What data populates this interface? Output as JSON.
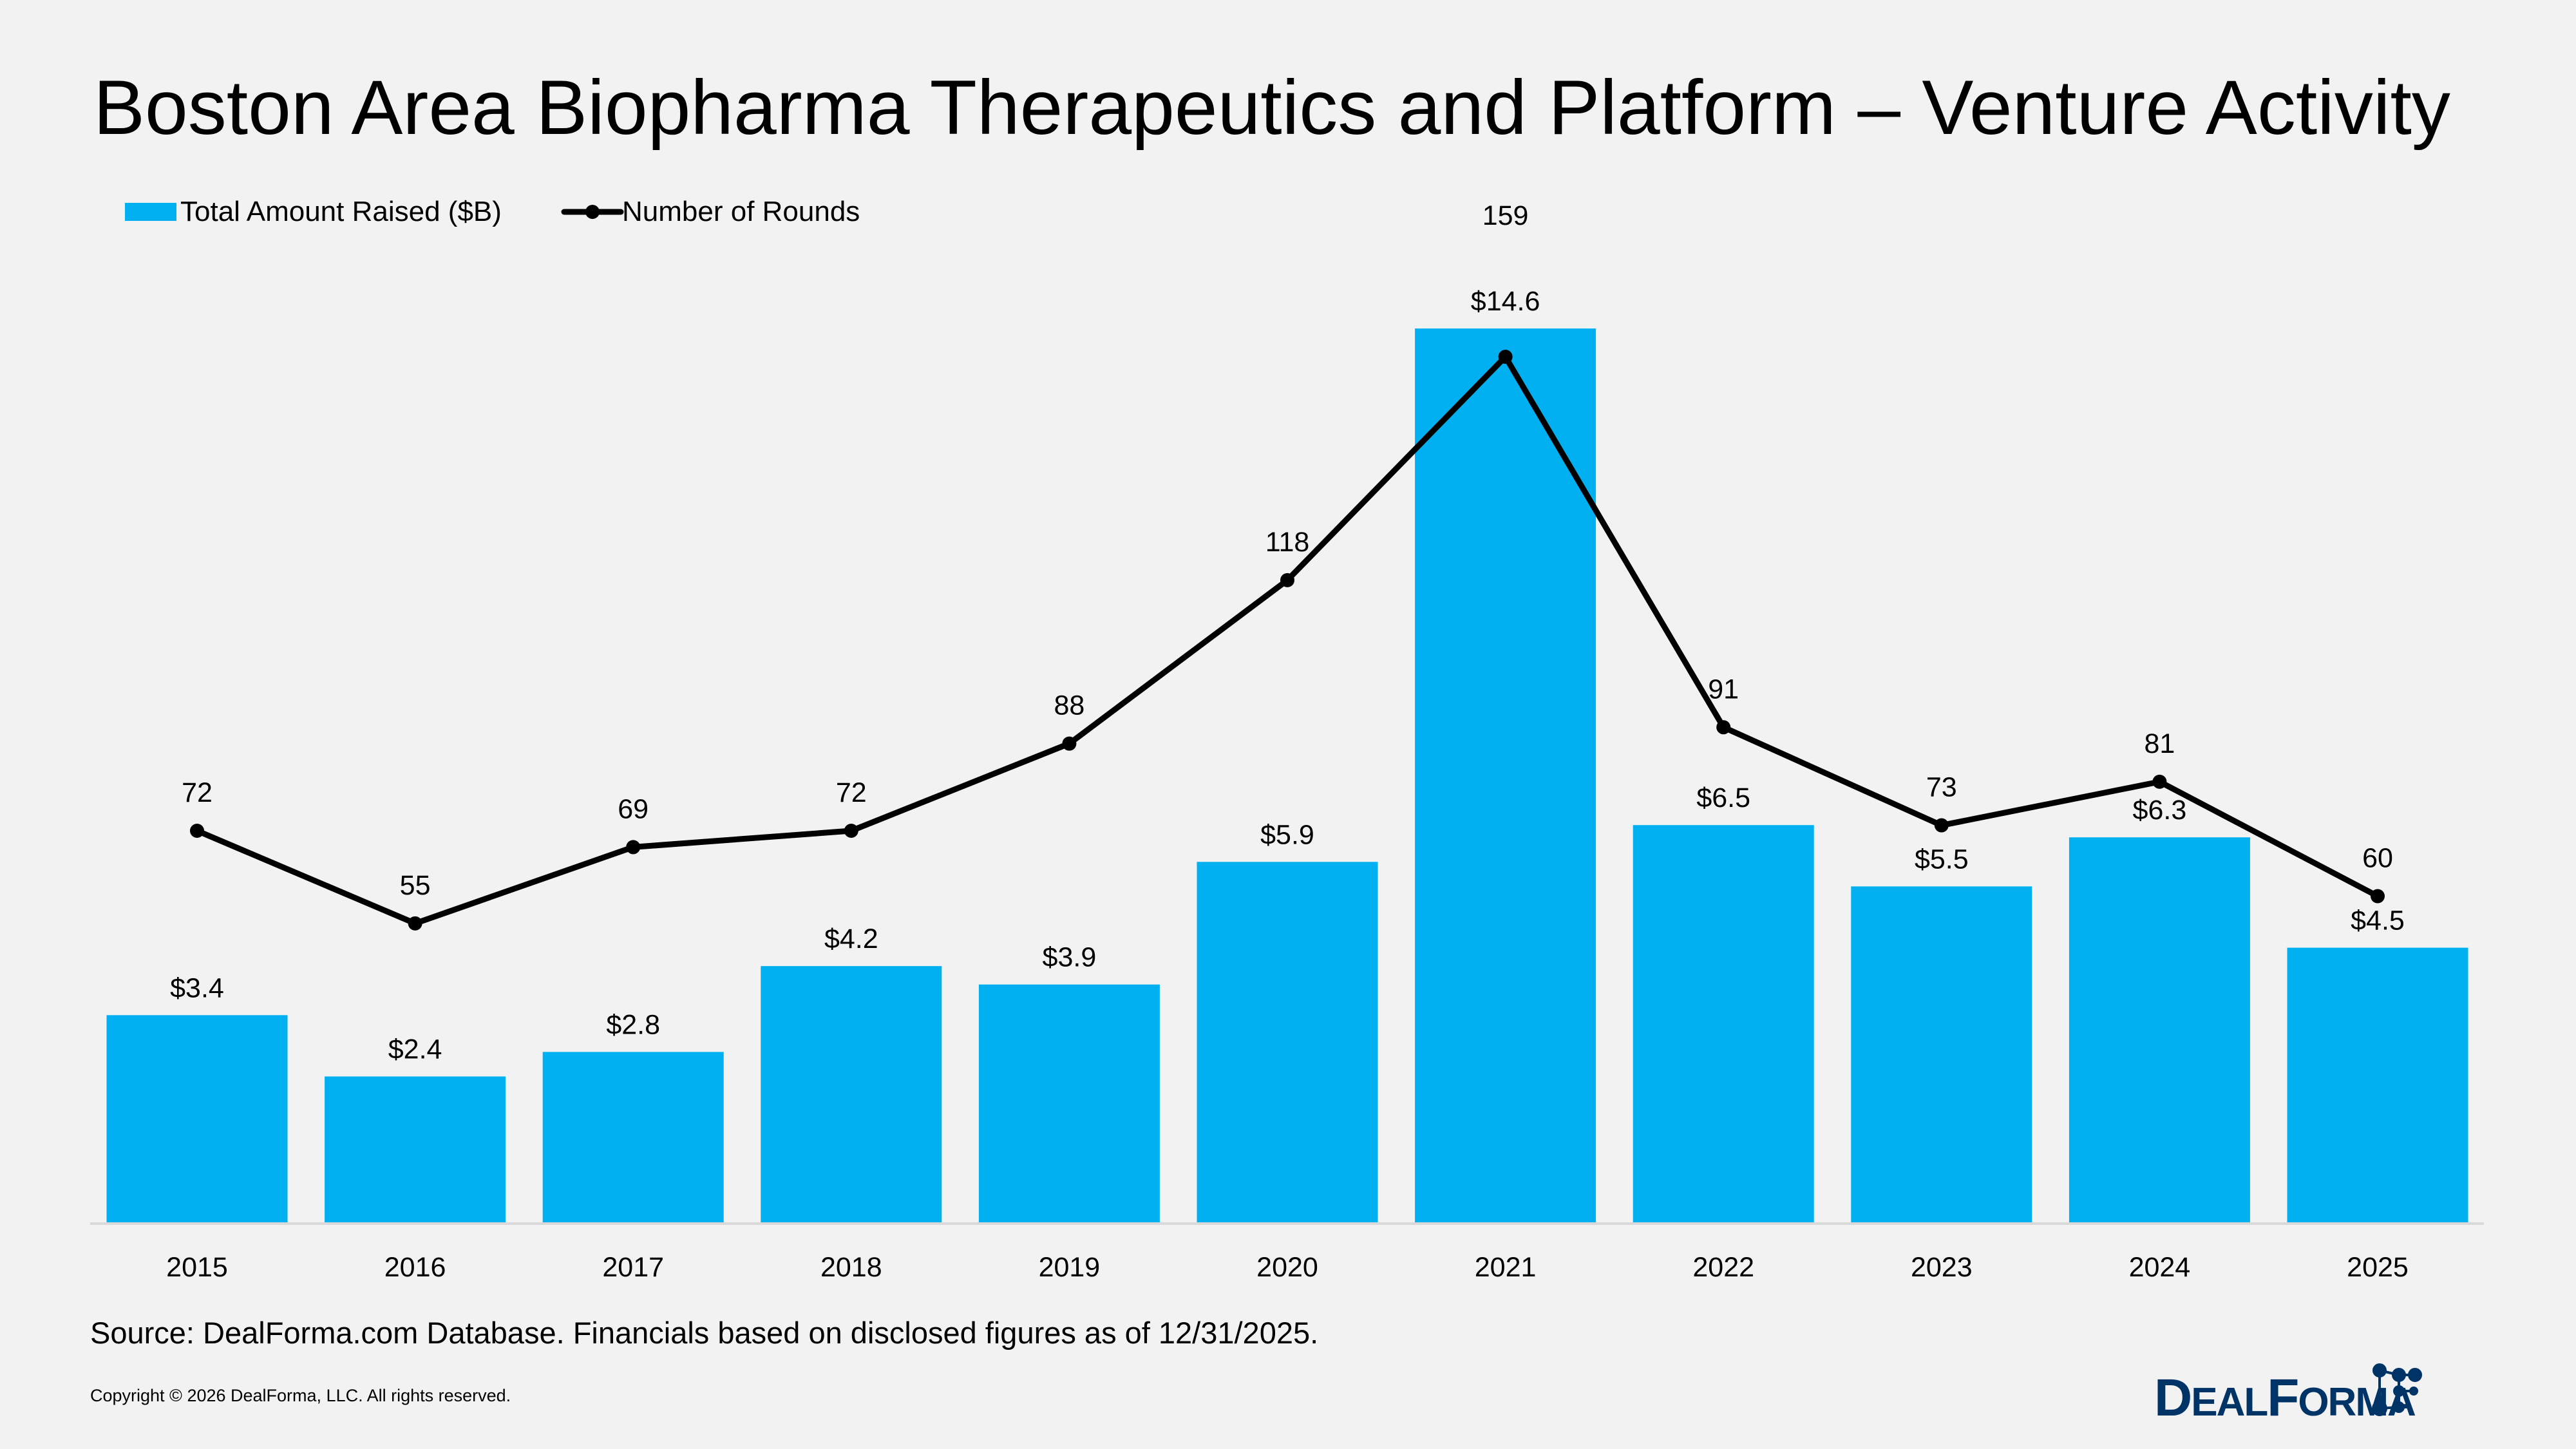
{
  "chart_data": {
    "type": "bar",
    "title": "Boston Area Biopharma Therapeutics and Platform – Venture Activity",
    "xlabel": "",
    "ylabel": "",
    "categories": [
      "2015",
      "2016",
      "2017",
      "2018",
      "2019",
      "2020",
      "2021",
      "2022",
      "2023",
      "2024",
      "2025"
    ],
    "series": [
      {
        "name": "Total Amount Raised ($B)",
        "type": "bar",
        "values": [
          3.4,
          2.4,
          2.8,
          4.2,
          3.9,
          5.9,
          14.6,
          6.5,
          5.5,
          6.3,
          4.5
        ],
        "labels": [
          "$3.4",
          "$2.4",
          "$2.8",
          "$4.2",
          "$3.9",
          "$5.9",
          "$14.6",
          "$6.5",
          "$5.5",
          "$6.3",
          "$4.5"
        ],
        "color": "#00b0f0"
      },
      {
        "name": "Number of Rounds",
        "type": "line",
        "values": [
          72,
          55,
          69,
          72,
          88,
          118,
          159,
          91,
          73,
          81,
          60
        ],
        "color": "#000000"
      }
    ],
    "legend_position": "top-left",
    "grid": false
  },
  "footer": {
    "source": "Source: DealForma.com Database. Financials based on disclosed figures as of 12/31/2025.",
    "copyright": "Copyright © 2026 DealForma, LLC. All rights reserved.",
    "logo_text": "DealForma"
  }
}
